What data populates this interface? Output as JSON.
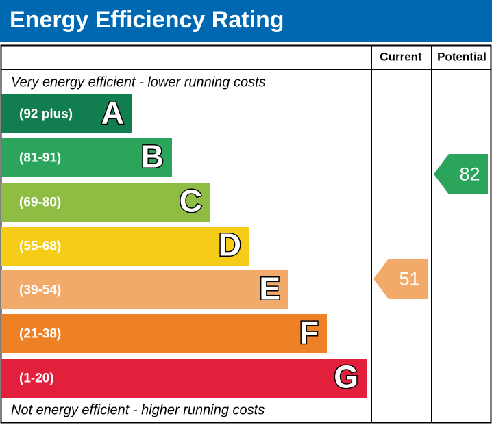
{
  "header": {
    "title": "Energy Efficiency Rating"
  },
  "columns": {
    "current": "Current",
    "potential": "Potential"
  },
  "top_note": "Very energy efficient - lower running costs",
  "bottom_note": "Not energy efficient - higher running costs",
  "bands": [
    {
      "range": "(92 plus)",
      "letter": "A",
      "color": "#127e4f"
    },
    {
      "range": "(81-91)",
      "letter": "B",
      "color": "#2ba55b"
    },
    {
      "range": "(69-80)",
      "letter": "C",
      "color": "#8fbd44"
    },
    {
      "range": "(55-68)",
      "letter": "D",
      "color": "#f5cc17"
    },
    {
      "range": "(39-54)",
      "letter": "E",
      "color": "#f2aa6b"
    },
    {
      "range": "(21-38)",
      "letter": "F",
      "color": "#ee8126"
    },
    {
      "range": "(1-20)",
      "letter": "G",
      "color": "#e2203c"
    }
  ],
  "current": {
    "value": "51",
    "color": "#f2aa6b"
  },
  "potential": {
    "value": "82",
    "color": "#2ba55b"
  }
}
